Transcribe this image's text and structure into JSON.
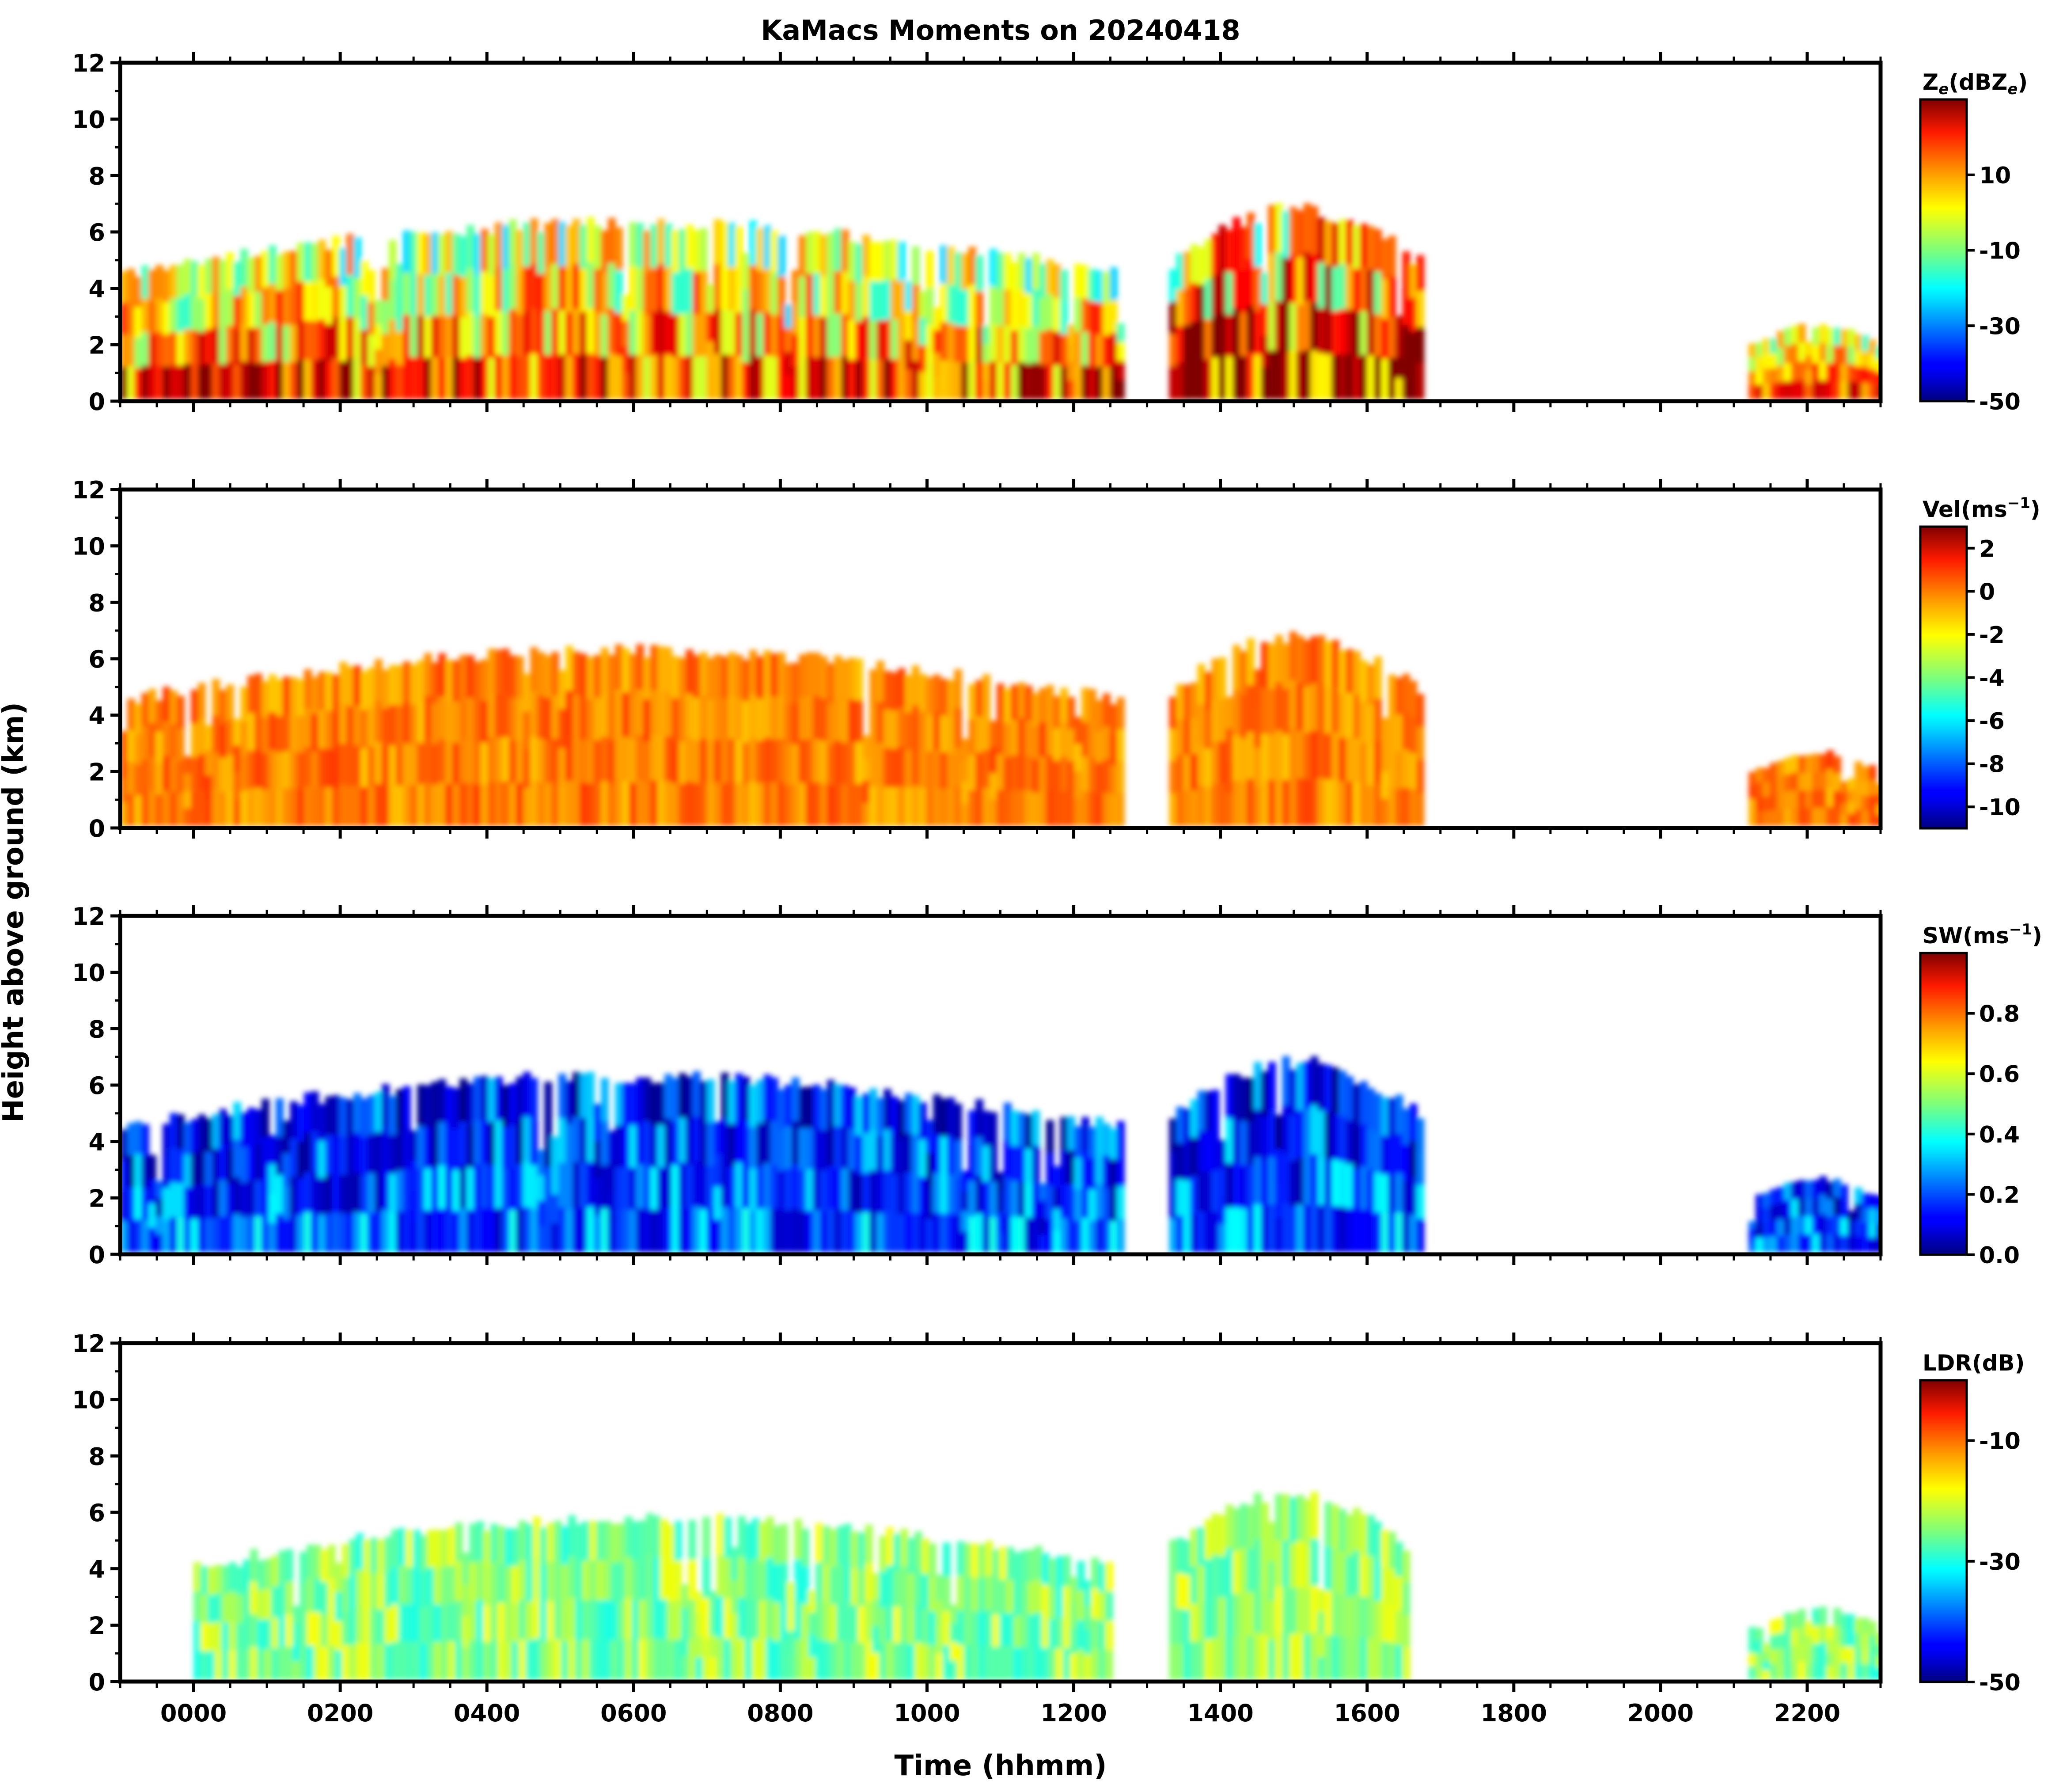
{
  "chart_data": {
    "type": "heatmap",
    "title": "KaMacs Moments on 20240418",
    "xlabel": "Time (hhmm)",
    "ylabel": "Height above ground (km)",
    "xlim": [
      -100,
      2300
    ],
    "x_tick_labels": [
      "0000",
      "0200",
      "0400",
      "0600",
      "0800",
      "1000",
      "1200",
      "1400",
      "1600",
      "1800",
      "2000",
      "2200"
    ],
    "x_tick_values": [
      0,
      200,
      400,
      600,
      800,
      1000,
      1200,
      1400,
      1600,
      1800,
      2000,
      2200
    ],
    "panels": [
      {
        "name": "reflectivity",
        "colorbar_label": "Z_e(dBZ_e)",
        "colorbar_label_parts": [
          "Z",
          "e",
          "(dBZ",
          "e",
          ")"
        ],
        "ylim": [
          0,
          12
        ],
        "y_ticks": [
          0,
          2,
          4,
          6,
          8,
          10,
          12
        ],
        "clim": [
          -50,
          30
        ],
        "cbar_ticks": [
          10,
          -10,
          -30,
          -50
        ],
        "colormap": "jet",
        "features": [
          {
            "t_start": -100,
            "t_end": 1260,
            "top_km": 6.3,
            "dominant": "yellow-green"
          },
          {
            "t_start": 1330,
            "t_end": 1670,
            "top_km": 6.8,
            "dominant": "red"
          },
          {
            "t_start": 2120,
            "t_end": 2300,
            "top_km": 2.7,
            "dominant": "yellow"
          }
        ]
      },
      {
        "name": "velocity",
        "colorbar_label": "Vel(ms⁻¹)",
        "colorbar_label_parts": [
          "Vel(ms",
          "−1",
          ")"
        ],
        "ylim": [
          0,
          12
        ],
        "y_ticks": [
          0,
          2,
          4,
          6,
          8,
          10,
          12
        ],
        "clim": [
          -11,
          3
        ],
        "cbar_ticks": [
          2,
          0,
          -2,
          -4,
          -6,
          -8,
          -10
        ],
        "colormap": "jet",
        "features": [
          {
            "t_start": -100,
            "t_end": 1260,
            "top_km": 6.3,
            "dominant": "orange"
          },
          {
            "t_start": 1330,
            "t_end": 1670,
            "top_km": 6.8,
            "dominant": "orange"
          },
          {
            "t_start": 2120,
            "t_end": 2300,
            "top_km": 2.7,
            "dominant": "orange"
          }
        ]
      },
      {
        "name": "spectrum_width",
        "colorbar_label": "SW(ms⁻¹)",
        "colorbar_label_parts": [
          "SW(ms",
          "−1",
          ")"
        ],
        "ylim": [
          0,
          12
        ],
        "y_ticks": [
          0,
          2,
          4,
          6,
          8,
          10,
          12
        ],
        "clim": [
          0,
          1
        ],
        "cbar_ticks": [
          "0.8",
          "0.6",
          "0.4",
          "0.2",
          "0.0"
        ],
        "colormap": "jet",
        "features": [
          {
            "t_start": -100,
            "t_end": 1260,
            "top_km": 6.3,
            "dominant": "blue"
          },
          {
            "t_start": 1330,
            "t_end": 1670,
            "top_km": 6.8,
            "dominant": "blue"
          },
          {
            "t_start": 2120,
            "t_end": 2300,
            "top_km": 2.7,
            "dominant": "blue"
          }
        ]
      },
      {
        "name": "ldr",
        "colorbar_label": "LDR(dB)",
        "colorbar_label_parts": [
          "LDR(dB)"
        ],
        "ylim": [
          0,
          12
        ],
        "y_ticks": [
          0,
          2,
          4,
          6,
          8,
          10,
          12
        ],
        "clim": [
          -50,
          0
        ],
        "cbar_ticks": [
          -10,
          -30,
          -50
        ],
        "colormap": "jet",
        "features": [
          {
            "t_start": 0,
            "t_end": 1250,
            "top_km": 5.8,
            "dominant": "cyan"
          },
          {
            "t_start": 1330,
            "t_end": 1650,
            "top_km": 6.7,
            "dominant": "cyan"
          },
          {
            "t_start": 2120,
            "t_end": 2300,
            "top_km": 2.6,
            "dominant": "cyan"
          }
        ]
      }
    ]
  },
  "colors": {
    "axis": "#000000",
    "background": "#ffffff"
  }
}
